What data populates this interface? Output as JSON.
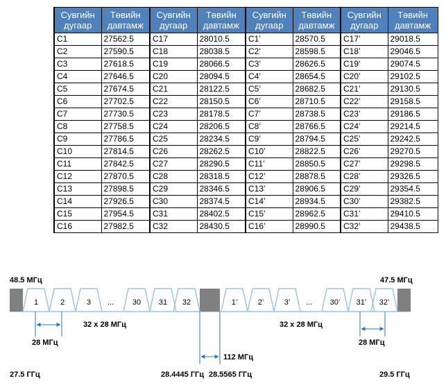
{
  "table": {
    "headers": [
      [
        "Сувгийн",
        "дугаар"
      ],
      [
        "Төвийн",
        "давтамж"
      ],
      [
        "Сувгийн",
        "дугаар"
      ],
      [
        "Төвийн",
        "давтамж"
      ],
      [
        "Сувгийн",
        "дугаар"
      ],
      [
        "Төвийн",
        "давтамж"
      ],
      [
        "Сувгийн",
        "дугаар"
      ],
      [
        "Төвийн",
        "давтамж"
      ]
    ],
    "rows": [
      [
        "C1",
        "27562.5",
        "C17",
        "28010.5",
        "C1’",
        "28570.5",
        "C17’",
        "29018.5"
      ],
      [
        "C2",
        "27590.5",
        "C18",
        "28038.5",
        "C2’",
        "28598.5",
        "C18’",
        "29046.5"
      ],
      [
        "C3",
        "27618.5",
        "C19",
        "28066.5",
        "C3’",
        "28626.5",
        "C19’",
        "29074.5"
      ],
      [
        "C4",
        "27646.5",
        "C20",
        "28094.5",
        "C4’",
        "28654.5",
        "C20’",
        "29102.5"
      ],
      [
        "C5",
        "27674.5",
        "C21",
        "28122.5",
        "C5’",
        "28682.5",
        "C21’",
        "29130.5"
      ],
      [
        "C6",
        "27702.5",
        "C22",
        "28150.5",
        "C6’",
        "28710.5",
        "C22’",
        "29158.5"
      ],
      [
        "C7",
        "27730.5",
        "C23",
        "28178.5",
        "C7’",
        "28738.5",
        "C23’",
        "29186.5"
      ],
      [
        "C8",
        "27758.5",
        "C24",
        "28206.5",
        "C8’",
        "28766.5",
        "C24’",
        "29214.5"
      ],
      [
        "C9",
        "27786.5",
        "C25",
        "28234.5",
        "C9’",
        "28794.5",
        "C25’",
        "29242.5"
      ],
      [
        "C10",
        "27814.5",
        "C26",
        "28262.5",
        "C10’",
        "28822.5",
        "C26’",
        "29270.5"
      ],
      [
        "C11",
        "27842.5",
        "C27",
        "28290.5",
        "C11’",
        "28850.5",
        "C27’",
        "29298.5"
      ],
      [
        "C12",
        "27870.5",
        "C28",
        "28318.5",
        "C12’",
        "28878.5",
        "C28’",
        "29326.5"
      ],
      [
        "C13",
        "27898.5",
        "C29",
        "28346.5",
        "C13’",
        "28906.5",
        "C29’",
        "29354.5"
      ],
      [
        "C14",
        "27926.5",
        "C30",
        "28374.5",
        "C14’",
        "28934.5",
        "C30’",
        "29382.5"
      ],
      [
        "C15",
        "27954.5",
        "C31",
        "28402.5",
        "C15’",
        "28962.5",
        "C31’",
        "29410.5"
      ],
      [
        "C16",
        "27982.5",
        "C32",
        "28430.5",
        "C16’",
        "28990.5",
        "C32’",
        "29438.5"
      ]
    ]
  },
  "diagram": {
    "guard_left_label": "48.5 МГц",
    "guard_right_label": "47.5 МГц",
    "channels_left": [
      "1",
      "2",
      "3",
      "...",
      "30",
      "31",
      "32"
    ],
    "channels_right": [
      "1’",
      "2’",
      "3’",
      "...",
      "30’",
      "31’",
      "32’"
    ],
    "span_left": "32 x 28 МГц",
    "span_right": "32 x 28 МГц",
    "spacing_left": "28 МГц",
    "spacing_right": "28 МГц",
    "center_gap": "112 МГц",
    "freq_start": "27.5 ГГц",
    "freq_mid_left": "28.4445 ГГц",
    "freq_mid_right": "28.5565 ГГц",
    "freq_end": "29.5 ГГц",
    "colors": {
      "guard": "#808080",
      "channel_outline": "#9dc3e6",
      "arrow": "#2e75b6"
    }
  }
}
